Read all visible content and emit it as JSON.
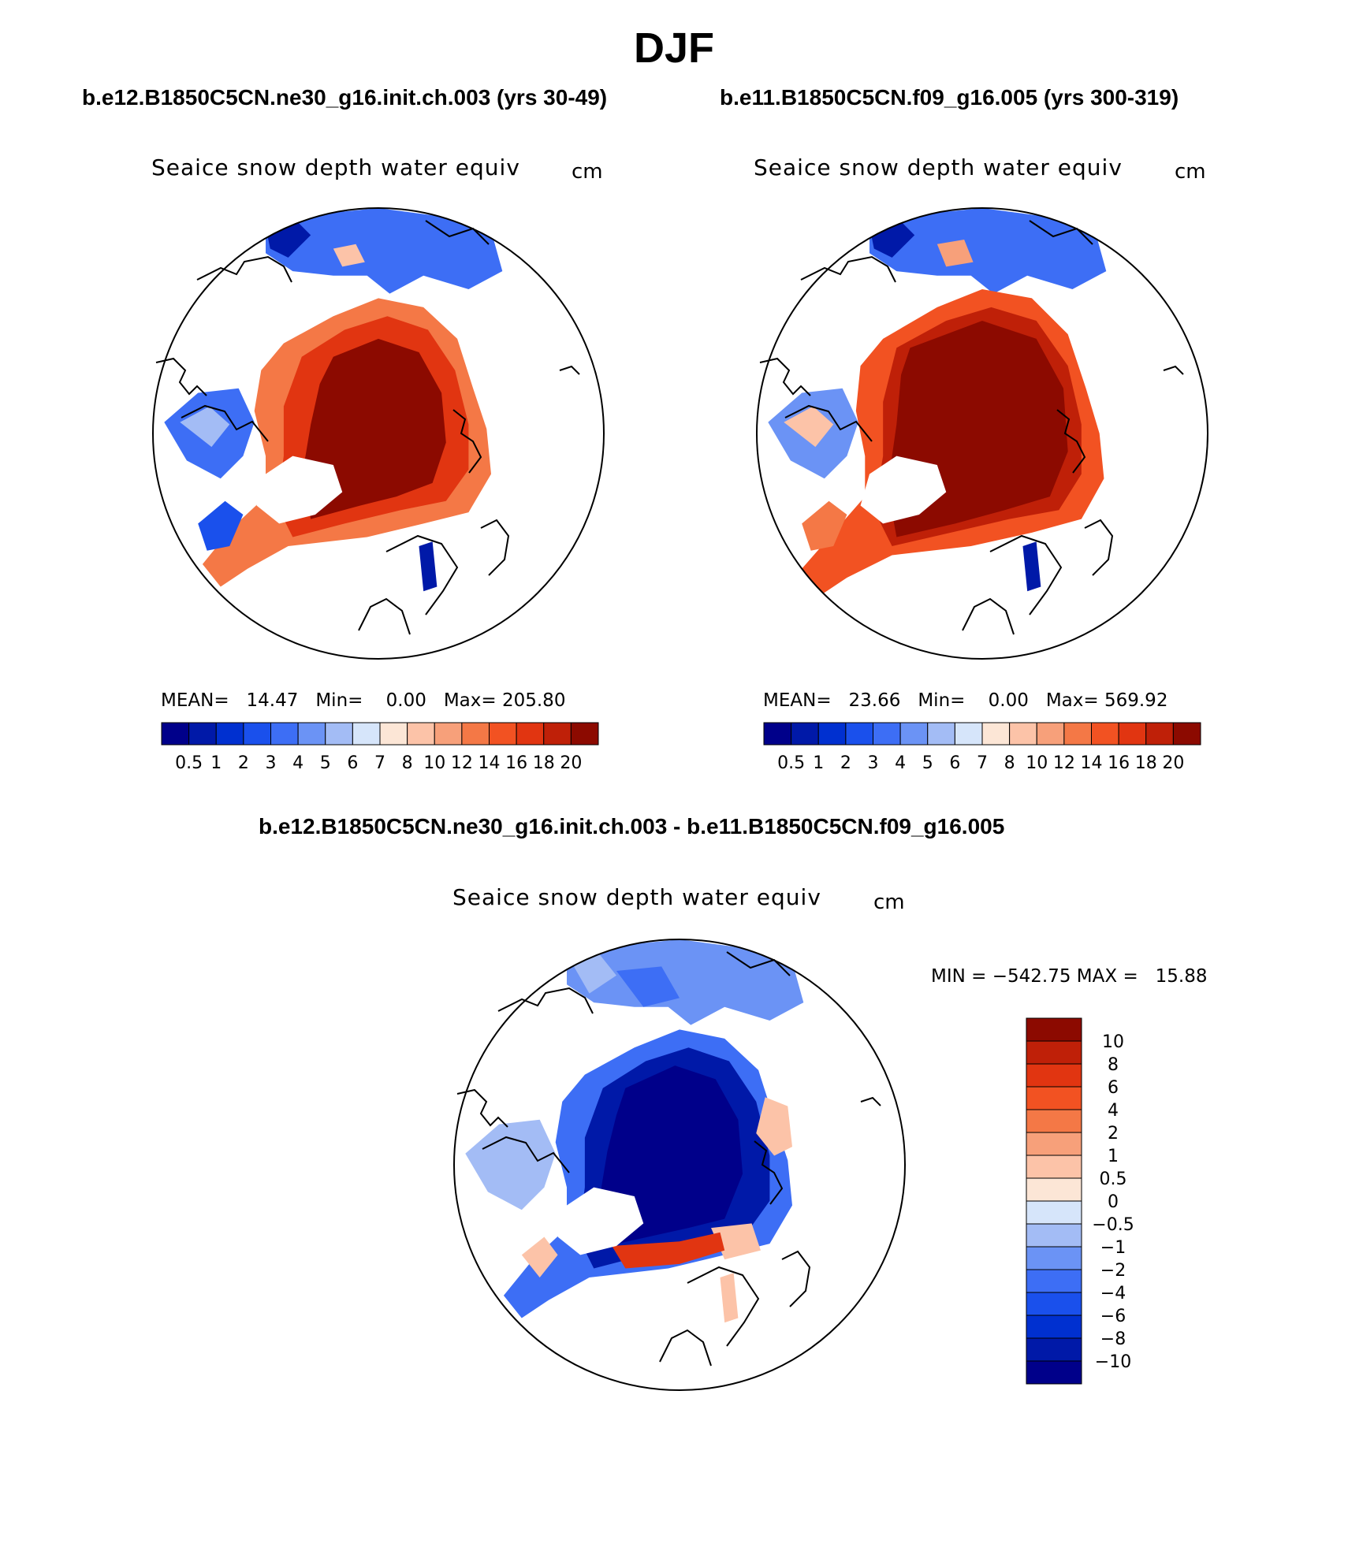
{
  "season": "DJF",
  "panels": {
    "left": {
      "case": "b.e12.B1850C5CN.ne30_g16.init.ch.003 (yrs 30-49)",
      "title": "Seaice snow depth water equiv",
      "units": "cm",
      "mean_label": "MEAN=",
      "mean": "14.47",
      "min_label": "Min=",
      "min": "0.00",
      "max_label": "Max=",
      "max": "205.80"
    },
    "right": {
      "case": "b.e11.B1850C5CN.f09_g16.005 (yrs 300-319)",
      "title": "Seaice snow depth water equiv",
      "units": "cm",
      "mean_label": "MEAN=",
      "mean": "23.66",
      "min_label": "Min=",
      "min": "0.00",
      "max_label": "Max=",
      "max": "569.92"
    },
    "diff": {
      "case": "b.e12.B1850C5CN.ne30_g16.init.ch.003 - b.e11.B1850C5CN.f09_g16.005",
      "title": "Seaice snow depth water equiv",
      "units": "cm",
      "min_label": "MIN =",
      "min": "−542.75",
      "max_label": "MAX =",
      "max": "15.88"
    }
  },
  "chart_data": [
    {
      "type": "heatmap",
      "projection": "north polar stereographic",
      "title": "Seaice snow depth water equiv",
      "units": "cm",
      "colorbar": {
        "orientation": "horizontal",
        "levels": [
          "0.5",
          "1",
          "2",
          "3",
          "4",
          "5",
          "6",
          "7",
          "8",
          "10",
          "12",
          "14",
          "16",
          "18",
          "20"
        ],
        "colors": [
          "#00008a",
          "#0019a8",
          "#0030d0",
          "#1a50ec",
          "#3d6ef5",
          "#6b93f5",
          "#a3bcf5",
          "#d6e5fa",
          "#fce6d6",
          "#fcc3a8",
          "#f7a07a",
          "#f47846",
          "#f25222",
          "#e13511",
          "#bf2008",
          "#8c0a00"
        ]
      },
      "stats": {
        "mean": 14.47,
        "min": 0.0,
        "max": 205.8
      }
    },
    {
      "type": "heatmap",
      "projection": "north polar stereographic",
      "title": "Seaice snow depth water equiv",
      "units": "cm",
      "colorbar": {
        "orientation": "horizontal",
        "levels": [
          "0.5",
          "1",
          "2",
          "3",
          "4",
          "5",
          "6",
          "7",
          "8",
          "10",
          "12",
          "14",
          "16",
          "18",
          "20"
        ],
        "colors": [
          "#00008a",
          "#0019a8",
          "#0030d0",
          "#1a50ec",
          "#3d6ef5",
          "#6b93f5",
          "#a3bcf5",
          "#d6e5fa",
          "#fce6d6",
          "#fcc3a8",
          "#f7a07a",
          "#f47846",
          "#f25222",
          "#e13511",
          "#bf2008",
          "#8c0a00"
        ]
      },
      "stats": {
        "mean": 23.66,
        "min": 0.0,
        "max": 569.92
      }
    },
    {
      "type": "heatmap",
      "projection": "north polar stereographic",
      "title": "Seaice snow depth water equiv",
      "units": "cm",
      "colorbar": {
        "orientation": "vertical",
        "levels": [
          "−10",
          "−8",
          "−6",
          "−4",
          "−2",
          "−1",
          "−0.5",
          "0",
          "0.5",
          "1",
          "2",
          "4",
          "6",
          "8",
          "10"
        ],
        "colors": [
          "#00008a",
          "#0019a8",
          "#0030d0",
          "#1a50ec",
          "#3d6ef5",
          "#6b93f5",
          "#a3bcf5",
          "#d6e5fa",
          "#fce6d6",
          "#fcc3a8",
          "#f7a07a",
          "#f47846",
          "#f25222",
          "#e13511",
          "#bf2008",
          "#8c0a00"
        ]
      },
      "stats": {
        "min": -542.75,
        "max": 15.88
      }
    }
  ]
}
